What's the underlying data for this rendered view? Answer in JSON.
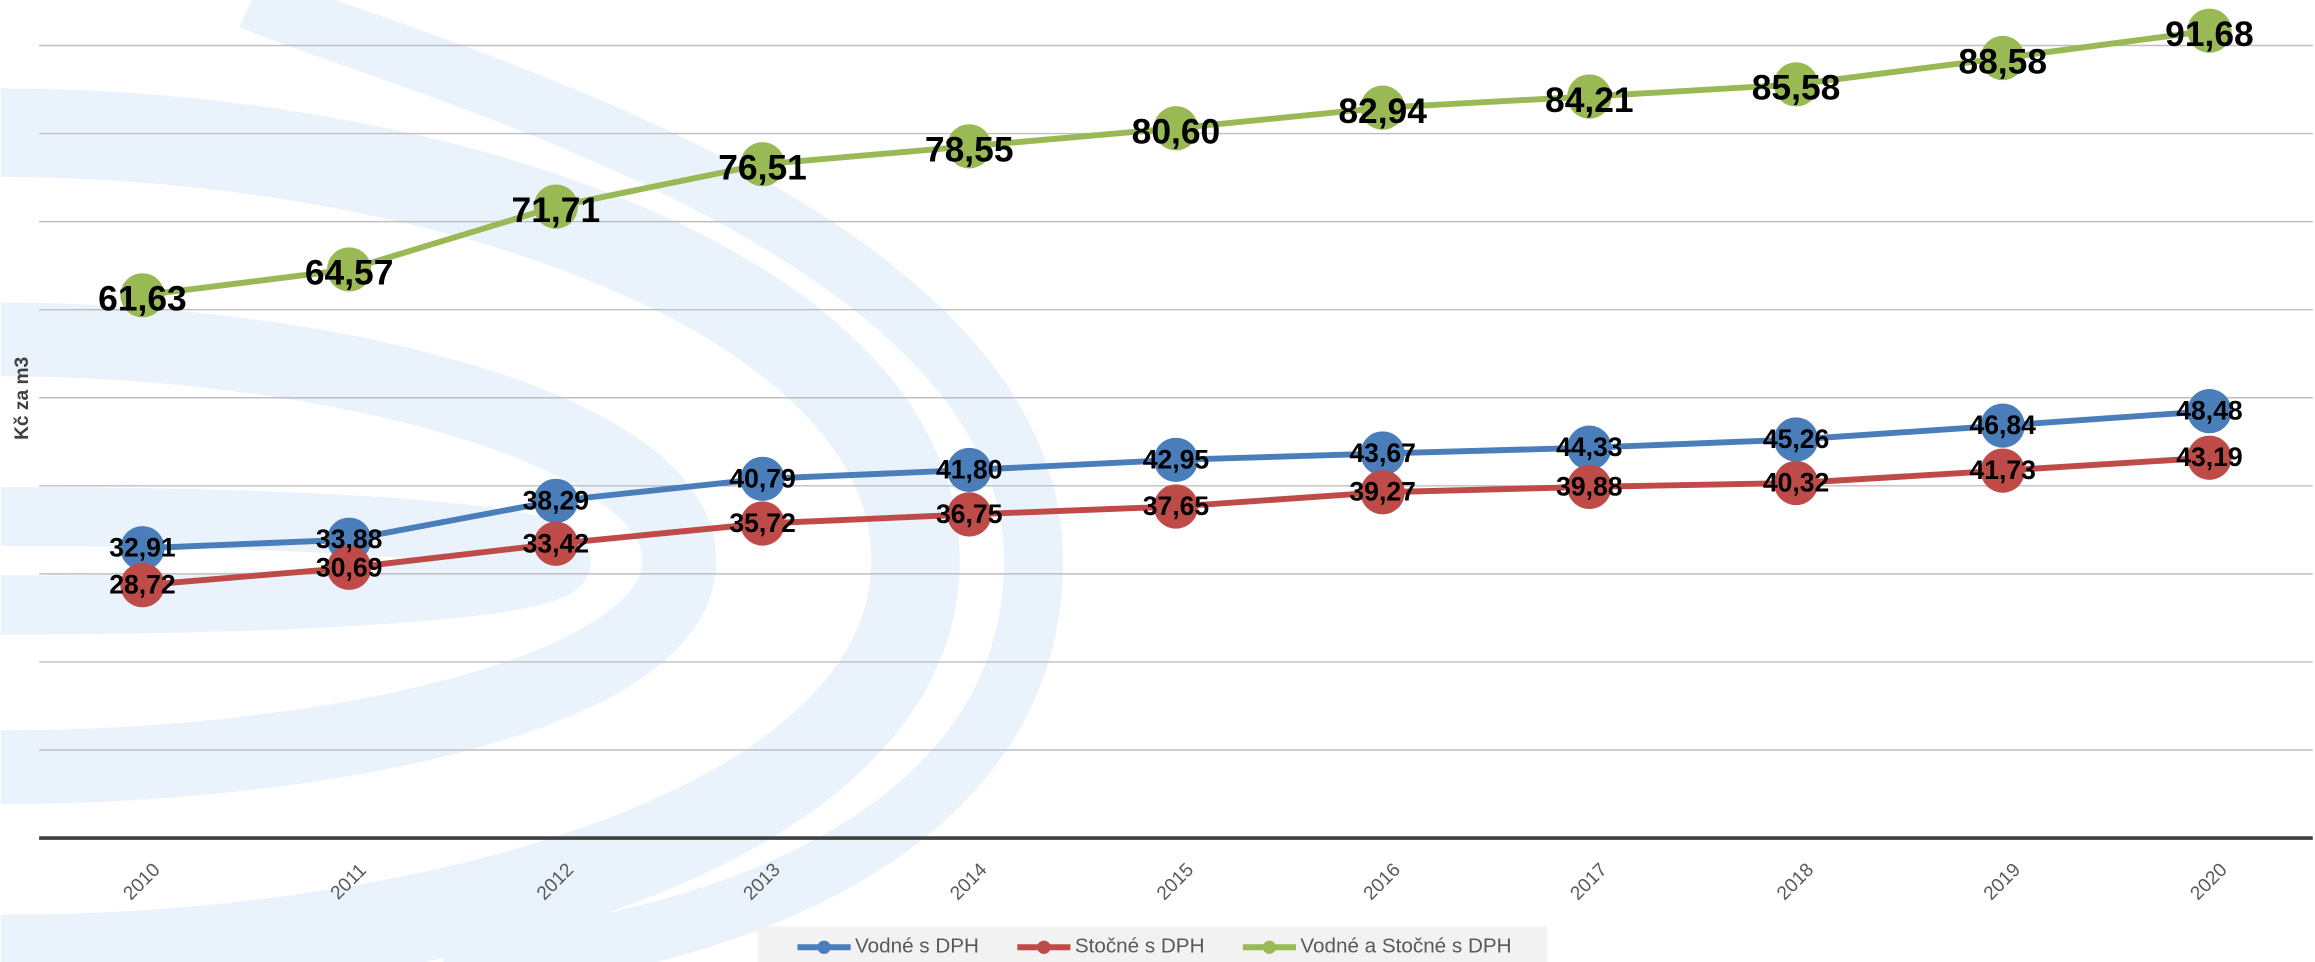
{
  "chart_data": {
    "type": "line",
    "y_axis_label": "Kč za m3",
    "categories": [
      "2010",
      "2011",
      "2012",
      "2013",
      "2014",
      "2015",
      "2016",
      "2017",
      "2018",
      "2019",
      "2020"
    ],
    "series": [
      {
        "name": "Vodné s DPH",
        "color": "#4a7ebb",
        "values": [
          32.91,
          33.88,
          38.29,
          40.79,
          41.8,
          42.95,
          43.67,
          44.33,
          45.26,
          46.84,
          48.48
        ],
        "value_labels": [
          "32,91",
          "33,88",
          "38,29",
          "40,79",
          "41,80",
          "42,95",
          "43,67",
          "44,33",
          "45,26",
          "46,84",
          "48,48"
        ]
      },
      {
        "name": "Stočné s DPH",
        "color": "#be4b48",
        "values": [
          28.72,
          30.69,
          33.42,
          35.72,
          36.75,
          37.65,
          39.27,
          39.88,
          40.32,
          41.73,
          43.19
        ],
        "value_labels": [
          "28,72",
          "30,69",
          "33,42",
          "35,72",
          "36,75",
          "37,65",
          "39,27",
          "39,88",
          "40,32",
          "41,73",
          "43,19"
        ]
      },
      {
        "name": "Vodné a Stočné s DPH",
        "color": "#98b954",
        "values": [
          61.63,
          64.57,
          71.71,
          76.51,
          78.55,
          80.6,
          82.94,
          84.21,
          85.58,
          88.58,
          91.68
        ],
        "value_labels": [
          "61,63",
          "64,57",
          "71,71",
          "76,51",
          "78,55",
          "80,60",
          "82,94",
          "84,21",
          "85,58",
          "88,58",
          "91,68"
        ]
      }
    ],
    "ylim": [
      0,
      95
    ],
    "yticks": [
      0,
      10,
      20,
      30,
      40,
      50,
      60,
      70,
      80,
      90
    ],
    "grid": true,
    "legend": "bottom"
  }
}
